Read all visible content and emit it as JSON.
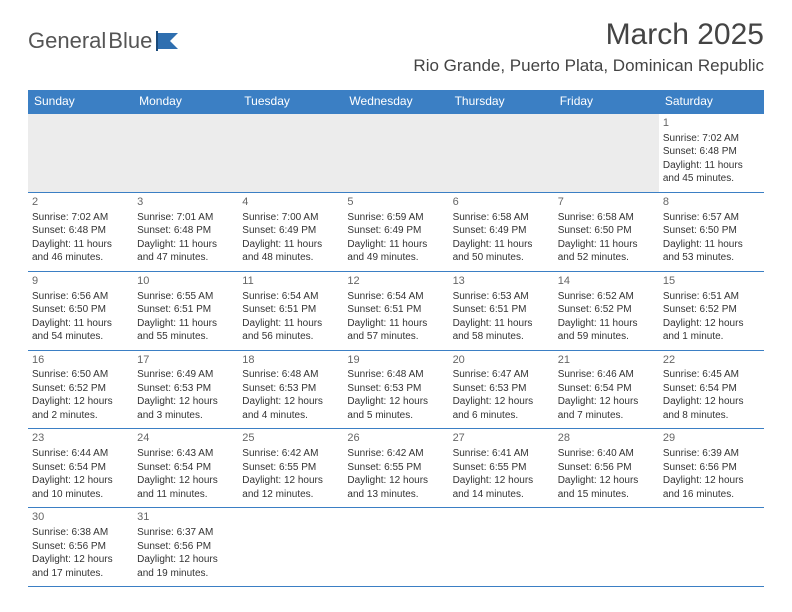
{
  "logo": {
    "text1": "General",
    "text2": "Blue"
  },
  "title": "March 2025",
  "location": "Rio Grande, Puerto Plata, Dominican Republic",
  "colors": {
    "header_bg": "#3b7fc4",
    "header_text": "#ffffff",
    "border": "#3b7fc4",
    "text": "#333333",
    "daynum": "#666666",
    "empty_bg": "#ececec",
    "logo_blue": "#2f6fb0"
  },
  "dayHeaders": [
    "Sunday",
    "Monday",
    "Tuesday",
    "Wednesday",
    "Thursday",
    "Friday",
    "Saturday"
  ],
  "weeks": [
    [
      {
        "day": "",
        "lines": []
      },
      {
        "day": "",
        "lines": []
      },
      {
        "day": "",
        "lines": []
      },
      {
        "day": "",
        "lines": []
      },
      {
        "day": "",
        "lines": []
      },
      {
        "day": "",
        "lines": []
      },
      {
        "day": "1",
        "lines": [
          "Sunrise: 7:02 AM",
          "Sunset: 6:48 PM",
          "Daylight: 11 hours and 45 minutes."
        ]
      }
    ],
    [
      {
        "day": "2",
        "lines": [
          "Sunrise: 7:02 AM",
          "Sunset: 6:48 PM",
          "Daylight: 11 hours and 46 minutes."
        ]
      },
      {
        "day": "3",
        "lines": [
          "Sunrise: 7:01 AM",
          "Sunset: 6:48 PM",
          "Daylight: 11 hours and 47 minutes."
        ]
      },
      {
        "day": "4",
        "lines": [
          "Sunrise: 7:00 AM",
          "Sunset: 6:49 PM",
          "Daylight: 11 hours and 48 minutes."
        ]
      },
      {
        "day": "5",
        "lines": [
          "Sunrise: 6:59 AM",
          "Sunset: 6:49 PM",
          "Daylight: 11 hours and 49 minutes."
        ]
      },
      {
        "day": "6",
        "lines": [
          "Sunrise: 6:58 AM",
          "Sunset: 6:49 PM",
          "Daylight: 11 hours and 50 minutes."
        ]
      },
      {
        "day": "7",
        "lines": [
          "Sunrise: 6:58 AM",
          "Sunset: 6:50 PM",
          "Daylight: 11 hours and 52 minutes."
        ]
      },
      {
        "day": "8",
        "lines": [
          "Sunrise: 6:57 AM",
          "Sunset: 6:50 PM",
          "Daylight: 11 hours and 53 minutes."
        ]
      }
    ],
    [
      {
        "day": "9",
        "lines": [
          "Sunrise: 6:56 AM",
          "Sunset: 6:50 PM",
          "Daylight: 11 hours and 54 minutes."
        ]
      },
      {
        "day": "10",
        "lines": [
          "Sunrise: 6:55 AM",
          "Sunset: 6:51 PM",
          "Daylight: 11 hours and 55 minutes."
        ]
      },
      {
        "day": "11",
        "lines": [
          "Sunrise: 6:54 AM",
          "Sunset: 6:51 PM",
          "Daylight: 11 hours and 56 minutes."
        ]
      },
      {
        "day": "12",
        "lines": [
          "Sunrise: 6:54 AM",
          "Sunset: 6:51 PM",
          "Daylight: 11 hours and 57 minutes."
        ]
      },
      {
        "day": "13",
        "lines": [
          "Sunrise: 6:53 AM",
          "Sunset: 6:51 PM",
          "Daylight: 11 hours and 58 minutes."
        ]
      },
      {
        "day": "14",
        "lines": [
          "Sunrise: 6:52 AM",
          "Sunset: 6:52 PM",
          "Daylight: 11 hours and 59 minutes."
        ]
      },
      {
        "day": "15",
        "lines": [
          "Sunrise: 6:51 AM",
          "Sunset: 6:52 PM",
          "Daylight: 12 hours and 1 minute."
        ]
      }
    ],
    [
      {
        "day": "16",
        "lines": [
          "Sunrise: 6:50 AM",
          "Sunset: 6:52 PM",
          "Daylight: 12 hours and 2 minutes."
        ]
      },
      {
        "day": "17",
        "lines": [
          "Sunrise: 6:49 AM",
          "Sunset: 6:53 PM",
          "Daylight: 12 hours and 3 minutes."
        ]
      },
      {
        "day": "18",
        "lines": [
          "Sunrise: 6:48 AM",
          "Sunset: 6:53 PM",
          "Daylight: 12 hours and 4 minutes."
        ]
      },
      {
        "day": "19",
        "lines": [
          "Sunrise: 6:48 AM",
          "Sunset: 6:53 PM",
          "Daylight: 12 hours and 5 minutes."
        ]
      },
      {
        "day": "20",
        "lines": [
          "Sunrise: 6:47 AM",
          "Sunset: 6:53 PM",
          "Daylight: 12 hours and 6 minutes."
        ]
      },
      {
        "day": "21",
        "lines": [
          "Sunrise: 6:46 AM",
          "Sunset: 6:54 PM",
          "Daylight: 12 hours and 7 minutes."
        ]
      },
      {
        "day": "22",
        "lines": [
          "Sunrise: 6:45 AM",
          "Sunset: 6:54 PM",
          "Daylight: 12 hours and 8 minutes."
        ]
      }
    ],
    [
      {
        "day": "23",
        "lines": [
          "Sunrise: 6:44 AM",
          "Sunset: 6:54 PM",
          "Daylight: 12 hours and 10 minutes."
        ]
      },
      {
        "day": "24",
        "lines": [
          "Sunrise: 6:43 AM",
          "Sunset: 6:54 PM",
          "Daylight: 12 hours and 11 minutes."
        ]
      },
      {
        "day": "25",
        "lines": [
          "Sunrise: 6:42 AM",
          "Sunset: 6:55 PM",
          "Daylight: 12 hours and 12 minutes."
        ]
      },
      {
        "day": "26",
        "lines": [
          "Sunrise: 6:42 AM",
          "Sunset: 6:55 PM",
          "Daylight: 12 hours and 13 minutes."
        ]
      },
      {
        "day": "27",
        "lines": [
          "Sunrise: 6:41 AM",
          "Sunset: 6:55 PM",
          "Daylight: 12 hours and 14 minutes."
        ]
      },
      {
        "day": "28",
        "lines": [
          "Sunrise: 6:40 AM",
          "Sunset: 6:56 PM",
          "Daylight: 12 hours and 15 minutes."
        ]
      },
      {
        "day": "29",
        "lines": [
          "Sunrise: 6:39 AM",
          "Sunset: 6:56 PM",
          "Daylight: 12 hours and 16 minutes."
        ]
      }
    ],
    [
      {
        "day": "30",
        "lines": [
          "Sunrise: 6:38 AM",
          "Sunset: 6:56 PM",
          "Daylight: 12 hours and 17 minutes."
        ]
      },
      {
        "day": "31",
        "lines": [
          "Sunrise: 6:37 AM",
          "Sunset: 6:56 PM",
          "Daylight: 12 hours and 19 minutes."
        ]
      },
      {
        "day": "",
        "lines": []
      },
      {
        "day": "",
        "lines": []
      },
      {
        "day": "",
        "lines": []
      },
      {
        "day": "",
        "lines": []
      },
      {
        "day": "",
        "lines": []
      }
    ]
  ]
}
